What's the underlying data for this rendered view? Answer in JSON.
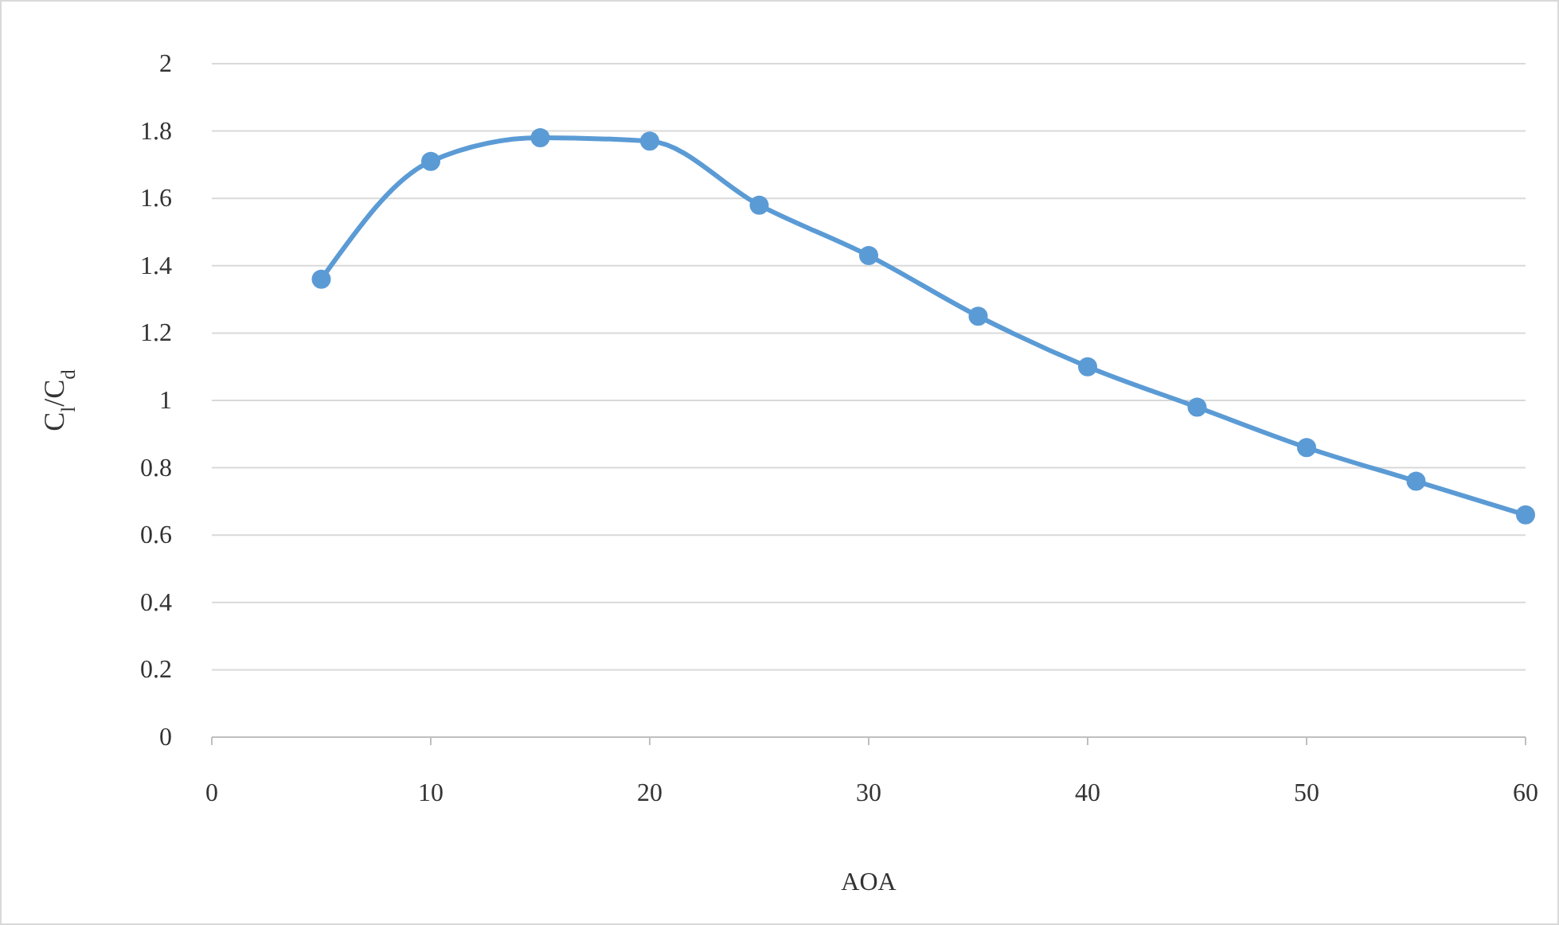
{
  "chart_data": {
    "type": "line",
    "xlabel": "AOA",
    "ylabel": "C$_{l}$/C$_{d}$",
    "x": [
      5,
      10,
      15,
      20,
      25,
      30,
      35,
      40,
      45,
      50,
      55,
      60
    ],
    "series": [
      {
        "color": "#5b9bd5",
        "values": [
          1.36,
          1.71,
          1.78,
          1.77,
          1.58,
          1.43,
          1.25,
          1.1,
          0.98,
          0.86,
          0.76,
          0.66
        ]
      }
    ],
    "xlim": [
      0,
      60
    ],
    "xticks": [
      0,
      10,
      20,
      30,
      40,
      50,
      60
    ],
    "ylim": [
      0,
      2
    ],
    "yticks": [
      0,
      0.2,
      0.4,
      0.6,
      0.8,
      1,
      1.2,
      1.4,
      1.6,
      1.8,
      2
    ],
    "grid": "y",
    "marker": "circle",
    "line_style": "solid"
  }
}
